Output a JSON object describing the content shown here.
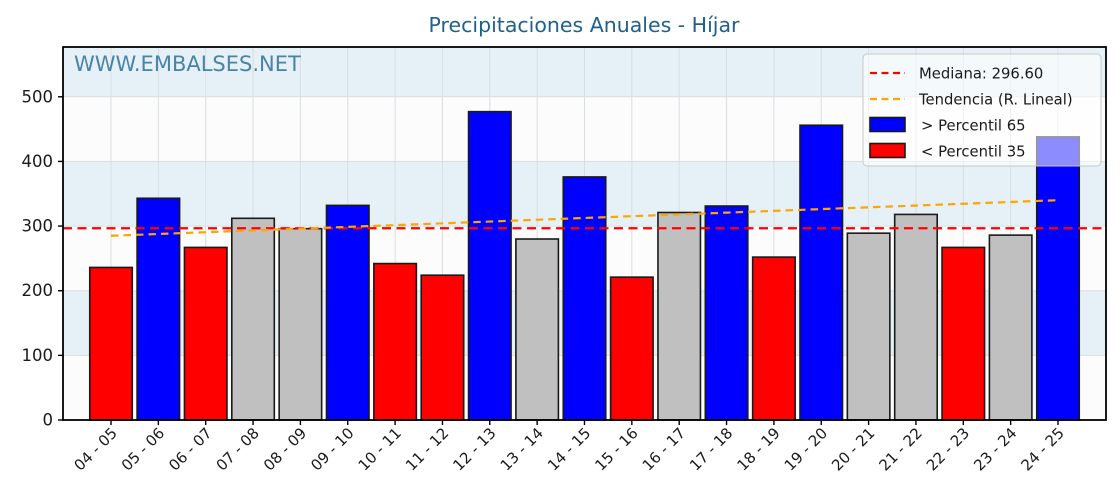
{
  "title": "Precipitaciones Anuales - Híjar",
  "watermark": "WWW.EMBALSES.NET",
  "legend": {
    "median_label": "Mediana: 296.60",
    "trend_label": "Tendencia (R. Lineal)",
    "above_label": "> Percentil 65",
    "below_label": "< Percentil 35"
  },
  "colors": {
    "above": "#0000ff",
    "below": "#ff0000",
    "normal": "#c0c0c0",
    "bar_edge": "#1a1a1a",
    "median_line": "#ff0000",
    "trend_line": "#ffa500",
    "title": "#1f618d",
    "watermark": "#4883a8",
    "band_blue": "#e6f1f7",
    "band_white": "#fcfcfc",
    "grid": "#d9dee1",
    "axis": "#000000",
    "tick_label": "#1a1a1a",
    "legend_border": "#c7c7c7"
  },
  "chart_data": {
    "type": "bar",
    "title": "Precipitaciones Anuales - Híjar",
    "xlabel": "",
    "ylabel": "",
    "categories": [
      "04 - 05",
      "05 - 06",
      "06 - 07",
      "07 - 08",
      "08 - 09",
      "09 - 10",
      "10 - 11",
      "11 - 12",
      "12 - 13",
      "13 - 14",
      "14 - 15",
      "15 - 16",
      "16 - 17",
      "17 - 18",
      "18 - 19",
      "19 - 20",
      "20 - 21",
      "21 - 22",
      "22 - 23",
      "23 - 24",
      "24 - 25"
    ],
    "values": [
      236,
      343,
      267,
      312,
      296,
      332,
      242,
      224,
      477,
      280,
      376,
      221,
      321,
      331,
      252,
      456,
      289,
      318,
      267,
      286,
      438
    ],
    "bar_classes": [
      "below",
      "above",
      "below",
      "normal",
      "normal",
      "above",
      "below",
      "below",
      "above",
      "normal",
      "above",
      "below",
      "normal",
      "above",
      "below",
      "above",
      "normal",
      "normal",
      "below",
      "normal",
      "above"
    ],
    "median": 296.6,
    "trend": {
      "start_value": 285,
      "end_value": 340
    },
    "yticks": [
      0,
      100,
      200,
      300,
      400,
      500
    ],
    "ylim": [
      0,
      577
    ],
    "grid": true,
    "legend_position": "upper right",
    "legend_entries": [
      "Mediana: 296.60",
      "Tendencia (R. Lineal)",
      "> Percentil 65",
      "< Percentil 35"
    ]
  }
}
